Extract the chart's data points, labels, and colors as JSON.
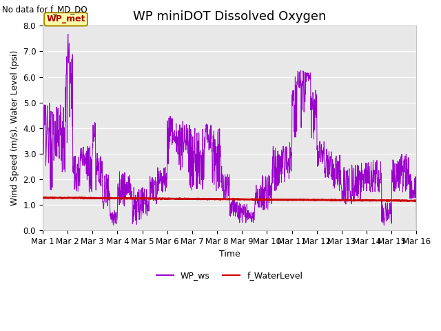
{
  "title": "WP miniDOT Dissolved Oxygen",
  "top_left_text": "No data for f_MD_DO",
  "xlabel": "Time",
  "ylabel": "Wind Speed (m/s), Water Level (psi)",
  "ylim": [
    0.0,
    8.0
  ],
  "yticks": [
    0.0,
    1.0,
    2.0,
    3.0,
    4.0,
    5.0,
    6.0,
    7.0,
    8.0
  ],
  "xtick_labels": [
    "Mar 1",
    "Mar 2",
    "Mar 3",
    "Mar 4",
    "Mar 5",
    "Mar 6",
    "Mar 7",
    "Mar 8",
    "Mar 9",
    "Mar 10",
    "Mar 11",
    "Mar 12",
    "Mar 13",
    "Mar 14",
    "Mar 15",
    "Mar 16"
  ],
  "legend_entries": [
    "WP_ws",
    "f_WaterLevel"
  ],
  "legend_colors": [
    "#9900CC",
    "#CC0000"
  ],
  "wp_ws_color": "#9900CC",
  "f_waterlevel_color": "#CC0000",
  "background_color": "#E8E8E8",
  "annotation_box_text": "WP_met",
  "annotation_box_facecolor": "#FFFFAA",
  "annotation_box_edgecolor": "#AA8800",
  "annotation_box_textcolor": "#AA0000",
  "title_fontsize": 13,
  "axis_label_fontsize": 9,
  "tick_fontsize": 8.5,
  "legend_fontsize": 9
}
